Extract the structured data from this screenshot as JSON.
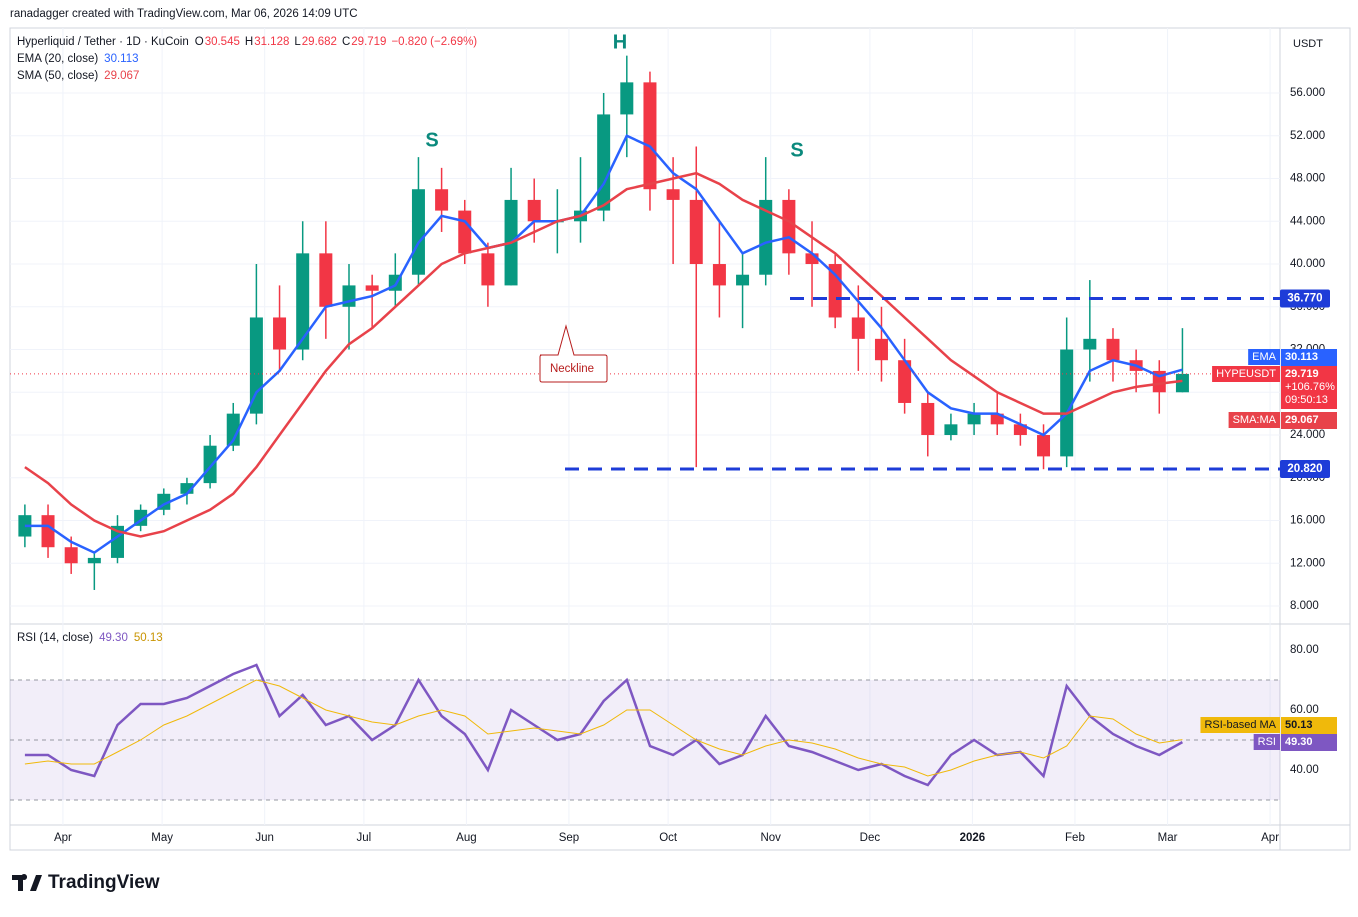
{
  "attribution": "ranadagger created with TradingView.com, Mar 06, 2026 14:09 UTC",
  "brand": "TradingView",
  "chart_data": {
    "type": "candlestick",
    "title": "Hyperliquid / Tether · 1D · KuCoin",
    "quote": [
      [
        "O",
        "30.545"
      ],
      [
        "H",
        "31.128"
      ],
      [
        "L",
        "29.682"
      ],
      [
        "C",
        "29.719"
      ]
    ],
    "change": "−0.820 (−2.69%)",
    "currency": "USDT",
    "up_color": "#089981",
    "down_color": "#f23645",
    "x": [
      "2025-03-17",
      "2025-03-24",
      "2025-03-31",
      "2025-04-07",
      "2025-04-14",
      "2025-04-21",
      "2025-04-28",
      "2025-05-05",
      "2025-05-12",
      "2025-05-19",
      "2025-05-26",
      "2025-06-02",
      "2025-06-09",
      "2025-06-16",
      "2025-06-23",
      "2025-06-30",
      "2025-07-07",
      "2025-07-14",
      "2025-07-21",
      "2025-07-28",
      "2025-08-04",
      "2025-08-11",
      "2025-08-18",
      "2025-08-25",
      "2025-09-01",
      "2025-09-08",
      "2025-09-15",
      "2025-09-22",
      "2025-09-29",
      "2025-10-06",
      "2025-10-13",
      "2025-10-20",
      "2025-10-27",
      "2025-11-03",
      "2025-11-10",
      "2025-11-17",
      "2025-11-24",
      "2025-12-01",
      "2025-12-08",
      "2025-12-15",
      "2025-12-22",
      "2025-12-29",
      "2026-01-05",
      "2026-01-12",
      "2026-01-19",
      "2026-01-26",
      "2026-02-02",
      "2026-02-09",
      "2026-02-16",
      "2026-02-23",
      "2026-03-02"
    ],
    "open": [
      14.5,
      16.5,
      13.5,
      12,
      12.5,
      15.5,
      17,
      18.5,
      19.5,
      23,
      26,
      35,
      32,
      41,
      36,
      38,
      37.5,
      39,
      47,
      45,
      41,
      38,
      46,
      44,
      44,
      45,
      54,
      57,
      47,
      46,
      40,
      38,
      39,
      46,
      41,
      40,
      35,
      33,
      31,
      27,
      24,
      25,
      26,
      25,
      24,
      22,
      32,
      33,
      31,
      30,
      28
    ],
    "high": [
      17.5,
      17.5,
      14.5,
      13,
      16.5,
      17.5,
      19,
      20,
      24,
      27,
      40,
      38,
      44,
      44,
      40,
      39,
      41,
      50,
      49,
      46,
      42,
      49,
      48,
      47,
      50,
      56,
      59.5,
      58,
      50,
      51,
      44,
      41,
      50,
      47,
      44,
      41,
      38,
      36,
      33,
      28,
      26,
      27,
      28,
      26,
      25,
      35,
      38.5,
      34,
      32,
      31,
      34
    ],
    "low": [
      13.5,
      12.5,
      11,
      9.5,
      12,
      15,
      16.5,
      17.5,
      19,
      22.5,
      25,
      30,
      31,
      33,
      32,
      34,
      36,
      38,
      43,
      40,
      36,
      38,
      42,
      41,
      42,
      44,
      50,
      45,
      40,
      21,
      35,
      34,
      38,
      39,
      36,
      34,
      30,
      29,
      26,
      22,
      23.5,
      24,
      24,
      23,
      20.8,
      21,
      29,
      29,
      28,
      26,
      28
    ],
    "close": [
      16.5,
      13.5,
      12,
      12.5,
      15.5,
      17,
      18.5,
      19.5,
      23,
      26,
      35,
      32,
      41,
      36,
      38,
      37.5,
      39,
      47,
      45,
      41,
      38,
      46,
      44,
      44,
      45,
      54,
      57,
      47,
      46,
      40,
      38,
      39,
      46,
      41,
      40,
      35,
      33,
      31,
      27,
      24,
      25,
      26,
      25,
      24,
      22,
      32,
      33,
      31,
      30,
      28,
      29.719
    ],
    "last_price": {
      "name": "HYPEUSDT",
      "label": "29.719",
      "change": "+106.76%",
      "countdown": "09:50:13"
    },
    "overlays": [
      {
        "name": "EMA",
        "legend": "EMA (20, close)",
        "value_label": "30.113",
        "color": "#2962ff",
        "values": [
          15.5,
          15.5,
          14,
          13,
          14.5,
          16,
          17.5,
          18.5,
          21,
          23.5,
          28,
          30,
          33,
          36,
          36.5,
          37,
          38,
          42,
          44.5,
          44,
          41.5,
          42,
          44,
          44,
          44.5,
          47.5,
          52,
          51,
          48.5,
          47,
          44,
          41,
          42,
          42.5,
          41,
          39,
          36.5,
          34,
          31,
          28,
          26.5,
          26,
          26,
          25,
          24,
          26,
          30,
          31,
          30.5,
          29.5,
          30.113
        ]
      },
      {
        "name": "SMA:MA",
        "legend": "SMA (50, close)",
        "value_label": "29.067",
        "color": "#e8424a",
        "values": [
          21,
          19.5,
          17.5,
          16,
          15,
          14.5,
          15,
          16,
          17,
          18.5,
          21,
          24,
          27,
          30,
          32.5,
          34,
          36,
          38,
          40,
          41,
          41.5,
          42,
          43,
          44,
          44.5,
          45.5,
          47,
          47.5,
          48,
          48.5,
          47.5,
          46,
          45,
          44,
          42.5,
          41,
          39,
          37,
          35,
          33,
          31,
          29.5,
          28,
          27,
          26,
          26,
          27,
          28,
          28.5,
          28.8,
          29.067
        ]
      }
    ],
    "levels": [
      {
        "value": 36.77,
        "label": "36.770"
      },
      {
        "value": 20.82,
        "label": "20.820"
      }
    ],
    "level_color": "#1e3cd8",
    "annotations": [
      "H",
      "S",
      "S",
      "Neckline"
    ],
    "ylim": [
      6.69,
      61.9
    ],
    "yticks": [
      {
        "value": 8,
        "label": "8.000"
      },
      {
        "value": 12,
        "label": "12.000"
      },
      {
        "value": 16,
        "label": "16.000"
      },
      {
        "value": 20,
        "label": "20.000"
      },
      {
        "value": 24,
        "label": "24.000"
      },
      {
        "value": 28,
        "label": "28.000"
      },
      {
        "value": 32,
        "label": "32.000"
      },
      {
        "value": 36,
        "label": "36.000"
      },
      {
        "value": 40,
        "label": "40.000"
      },
      {
        "value": 44,
        "label": "44.000"
      },
      {
        "value": 48,
        "label": "48.000"
      },
      {
        "value": 52,
        "label": "52.000"
      },
      {
        "value": 56,
        "label": "56.000"
      }
    ],
    "xlim": [
      "2025-03-16",
      "2026-04-04"
    ],
    "xticks": [
      {
        "value": "2025-04-01",
        "label": "Apr"
      },
      {
        "value": "2025-05-01",
        "label": "May"
      },
      {
        "value": "2025-06-01",
        "label": "Jun"
      },
      {
        "value": "2025-07-01",
        "label": "Jul"
      },
      {
        "value": "2025-08-01",
        "label": "Aug"
      },
      {
        "value": "2025-09-01",
        "label": "Sep"
      },
      {
        "value": "2025-10-01",
        "label": "Oct"
      },
      {
        "value": "2025-11-01",
        "label": "Nov"
      },
      {
        "value": "2025-12-01",
        "label": "Dec"
      },
      {
        "value": "2026-01-01",
        "label": "2026"
      },
      {
        "value": "2026-02-01",
        "label": "Feb"
      },
      {
        "value": "2026-03-01",
        "label": "Mar"
      },
      {
        "value": "2026-04-01",
        "label": "Apr"
      }
    ],
    "grid": true,
    "rsi": {
      "legend": "RSI (14, close)",
      "ylim": [
        23.33,
        86.67
      ],
      "yticks": [
        {
          "value": 40,
          "label": "40.00"
        },
        {
          "value": 60,
          "label": "60.00"
        },
        {
          "value": 80,
          "label": "80.00"
        }
      ],
      "band": [
        30,
        70
      ],
      "midline": 50,
      "series": [
        {
          "name": "RSI",
          "color": "#7e57c2",
          "value_label": "49.30",
          "values": [
            45,
            45,
            40,
            38,
            55,
            62,
            62,
            64,
            68,
            72,
            75,
            58,
            65,
            55,
            58,
            50,
            55,
            70,
            58,
            52,
            40,
            60,
            55,
            50,
            52,
            63,
            70,
            48,
            45,
            50,
            42,
            45,
            58,
            48,
            46,
            43,
            40,
            42,
            38,
            35,
            45,
            50,
            45,
            46,
            38,
            68,
            58,
            52,
            48,
            45,
            49.3
          ]
        },
        {
          "name": "RSI-based MA",
          "color": "#f0b90b",
          "value_label": "50.13",
          "values": [
            42,
            43,
            42,
            42,
            46,
            50,
            55,
            58,
            62,
            66,
            70,
            68,
            64,
            60,
            58,
            56,
            55,
            58,
            60,
            58,
            52,
            53,
            54,
            53,
            52,
            55,
            60,
            60,
            55,
            50,
            47,
            45,
            48,
            50,
            49,
            47,
            44,
            42,
            41,
            38,
            40,
            43,
            45,
            46,
            44,
            48,
            58,
            57,
            52,
            49,
            50.13
          ]
        }
      ]
    }
  }
}
